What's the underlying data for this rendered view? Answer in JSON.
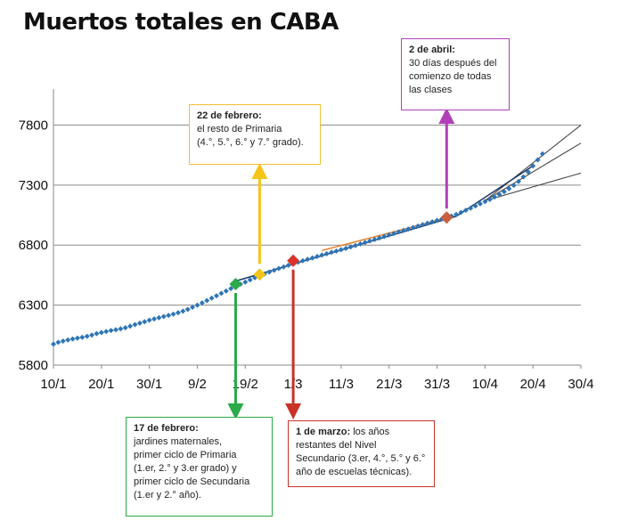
{
  "chart_data": {
    "type": "scatter",
    "title": "Muertos totales en CABA",
    "ylim": [
      5800,
      8100
    ],
    "y_ticks": [
      5800,
      6300,
      6800,
      7300,
      7800
    ],
    "x_tick_labels": [
      "10/1",
      "20/1",
      "30/1",
      "9/2",
      "19/2",
      "1/3",
      "11/3",
      "21/3",
      "31/3",
      "10/4",
      "20/4",
      "30/4"
    ],
    "xlim_days": [
      0,
      110
    ],
    "grid": "horizontal",
    "colors": {
      "points": "#2e75b6",
      "trend": "#1f3864",
      "orange_segment": "#e8822a",
      "projection": "#404040"
    },
    "series": [
      {
        "y": [
          5975,
          5990,
          6000,
          6010,
          6018,
          6025,
          6032,
          6040,
          6050,
          6062,
          6072,
          6080,
          6088,
          6095,
          6102,
          6112,
          6125,
          6138,
          6150,
          6162,
          6175,
          6185,
          6195,
          6205,
          6215,
          6225,
          6237,
          6250,
          6265,
          6282,
          6300,
          6318,
          6338,
          6358,
          6378,
          6398,
          6418,
          6438,
          6455,
          6475,
          6492,
          6510,
          6528,
          6545,
          6560,
          6575,
          6590,
          6605,
          6618,
          6632,
          6645,
          6658,
          6670,
          6682,
          6693,
          6705,
          6717,
          6728,
          6740,
          6751,
          6762,
          6773,
          6785,
          6797,
          6810,
          6822,
          6835,
          6847,
          6860,
          6872,
          6885,
          6897,
          6910,
          6922,
          6934,
          6946,
          6958,
          6970,
          6982,
          6994,
          7006,
          7018,
          7030,
          7042,
          7056,
          7072,
          7090,
          7108,
          7126,
          7144,
          7162,
          7180,
          7200,
          7222,
          7245,
          7270,
          7298,
          7330,
          7368,
          7410,
          7460,
          7510,
          7560
        ]
      }
    ],
    "markers": [
      {
        "label": "17 de febrero",
        "x": 38,
        "y": 6475,
        "color": "#2aaa48"
      },
      {
        "label": "22 de febrero",
        "x": 43,
        "y": 6555,
        "color": "#f5c518"
      },
      {
        "label": "1 de marzo",
        "x": 50,
        "y": 6670,
        "color": "#d8322a"
      },
      {
        "label": "2 de abril",
        "x": 82,
        "y": 7030,
        "color": "#c86040"
      }
    ],
    "annotations": {
      "apr2": {
        "title": "2 de abril:",
        "lines": [
          "30 días después del",
          "comienzo de todas",
          "las clases"
        ]
      },
      "feb22": {
        "title": "22 de febrero:",
        "lines": [
          "el resto de Primaria",
          "(4.°, 5.°, 6.° y 7.° grado)."
        ]
      },
      "feb17": {
        "title": "17 de febrero:",
        "lines": [
          " jardines maternales,",
          "primer ciclo de Primaria",
          "(1.er, 2.° y 3.er grado) y",
          "primer ciclo de Secundaria",
          "(1.er y 2.° año)."
        ]
      },
      "mar1": {
        "title": "1 de marzo:",
        "title_suffix": " los años",
        "lines": [
          "restantes del Nivel",
          "Secundario (3.er, 4.°, 5.° y 6.°",
          "año de escuelas técnicas)."
        ]
      }
    }
  }
}
